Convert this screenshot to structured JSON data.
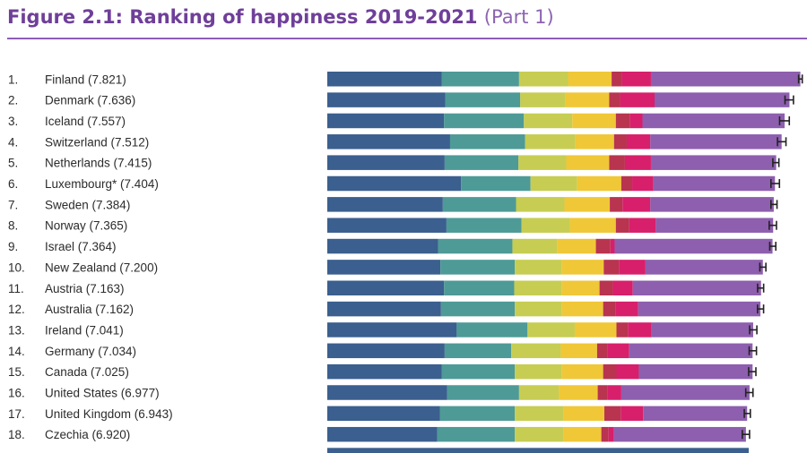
{
  "title": {
    "main": "Figure 2.1: Ranking of happiness 2019-2021",
    "sub": "(Part 1)"
  },
  "colors": {
    "title": "#6f3f99",
    "rule": "#8e5cb8",
    "errorbar": "#222222",
    "components": [
      "#3b5f8e",
      "#4e9a97",
      "#c6cd52",
      "#f0c737",
      "#b8344f",
      "#d81f6b",
      "#8d5fae"
    ]
  },
  "chart_data": {
    "type": "bar",
    "orientation": "horizontal",
    "stacked": true,
    "title": "Figure 2.1: Ranking of happiness 2019-2021 (Part 1)",
    "categories": [
      "1.|Finland (7.821)",
      "2.|Denmark (7.636)",
      "3.|Iceland (7.557)",
      "4.|Switzerland (7.512)",
      "5.|Netherlands (7.415)",
      "6.|Luxembourg* (7.404)",
      "7.|Sweden (7.384)",
      "8.|Norway (7.365)",
      "9.|Israel (7.364)",
      "10.|New Zealand (7.200)",
      "11.|Austria (7.163)",
      "12.|Australia (7.162)",
      "13.|Ireland (7.041)",
      "14.|Germany (7.034)",
      "15.|Canada (7.025)",
      "16.|United States (6.977)",
      "17.|United Kingdom (6.943)",
      "18.|Czechia (6.920)"
    ],
    "totals": [
      7.821,
      7.636,
      7.557,
      7.512,
      7.415,
      7.404,
      7.384,
      7.365,
      7.364,
      7.2,
      7.163,
      7.162,
      7.041,
      7.034,
      7.025,
      6.977,
      6.943,
      6.92
    ],
    "segments": [
      [
        1.89,
        1.28,
        0.81,
        0.72,
        0.17,
        0.48,
        2.47
      ],
      [
        1.95,
        1.24,
        0.75,
        0.72,
        0.18,
        0.57,
        2.23
      ],
      [
        1.93,
        1.32,
        0.8,
        0.72,
        0.23,
        0.21,
        2.35
      ],
      [
        2.03,
        1.24,
        0.83,
        0.64,
        0.21,
        0.39,
        2.17
      ],
      [
        1.94,
        1.22,
        0.79,
        0.71,
        0.26,
        0.43,
        2.07
      ],
      [
        2.21,
        1.15,
        0.77,
        0.73,
        0.18,
        0.35,
        2.01
      ],
      [
        1.91,
        1.21,
        0.8,
        0.75,
        0.21,
        0.46,
        2.04
      ],
      [
        1.97,
        1.24,
        0.8,
        0.76,
        0.22,
        0.44,
        1.94
      ],
      [
        1.83,
        1.23,
        0.74,
        0.64,
        0.24,
        0.07,
        2.61
      ],
      [
        1.87,
        1.23,
        0.78,
        0.69,
        0.25,
        0.44,
        1.94
      ],
      [
        1.93,
        1.16,
        0.79,
        0.62,
        0.22,
        0.33,
        2.12
      ],
      [
        1.88,
        1.22,
        0.78,
        0.68,
        0.2,
        0.38,
        2.02
      ],
      [
        2.14,
        1.17,
        0.78,
        0.69,
        0.19,
        0.39,
        1.68
      ],
      [
        1.94,
        1.1,
        0.82,
        0.6,
        0.17,
        0.36,
        2.04
      ],
      [
        1.89,
        1.21,
        0.78,
        0.68,
        0.22,
        0.37,
        1.88
      ],
      [
        1.98,
        1.19,
        0.66,
        0.64,
        0.16,
        0.23,
        2.12
      ],
      [
        1.86,
        1.24,
        0.81,
        0.67,
        0.27,
        0.37,
        1.72
      ],
      [
        1.82,
        1.28,
        0.81,
        0.62,
        0.12,
        0.09,
        2.18
      ]
    ],
    "errors": [
      0.03,
      0.07,
      0.08,
      0.07,
      0.05,
      0.07,
      0.05,
      0.06,
      0.05,
      0.05,
      0.05,
      0.05,
      0.06,
      0.06,
      0.06,
      0.06,
      0.05,
      0.06
    ],
    "xlim": [
      0,
      7.9
    ],
    "grid": false,
    "legend": "none"
  }
}
